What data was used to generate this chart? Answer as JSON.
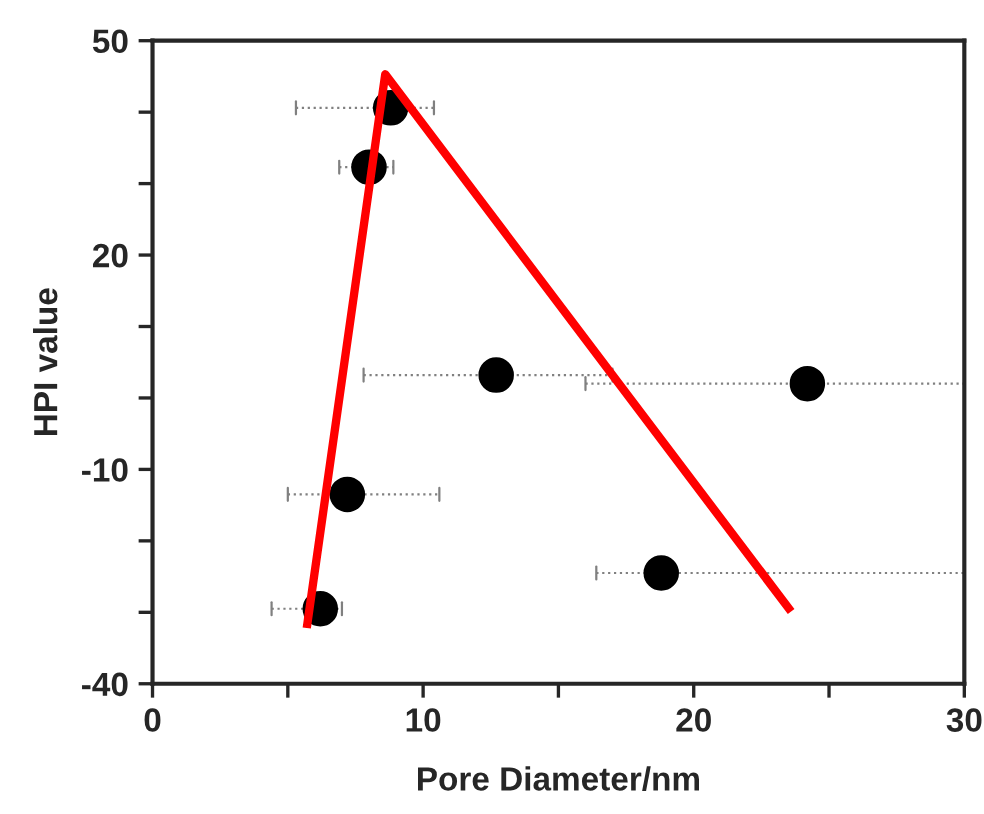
{
  "chart_data": {
    "type": "scatter",
    "xlabel": "Pore Diameter/nm",
    "ylabel": "HPI value",
    "xlim": [
      0,
      30
    ],
    "xticks": [
      0,
      {
        "value": 5,
        "label": null
      },
      10,
      {
        "value": 15,
        "label": null
      },
      20,
      {
        "value": 25,
        "label": null
      },
      30
    ],
    "ylim": [
      -40,
      50
    ],
    "yticks": [
      -40,
      {
        "value": -30,
        "label": null
      },
      {
        "value": -20,
        "label": null
      },
      -10,
      {
        "value": 0,
        "label": null
      },
      {
        "value": 10,
        "label": null
      },
      20,
      {
        "value": 30,
        "label": null
      },
      {
        "value": 40,
        "label": null
      },
      50
    ],
    "grid": false,
    "legend": false,
    "series": [
      {
        "color": "#000000",
        "marker": "circle",
        "x": [
          8.8,
          8.0,
          12.7,
          24.2,
          7.2,
          18.8,
          6.2
        ],
        "values": [
          40.6,
          32.3,
          3.2,
          2.0,
          -13.5,
          -24.5,
          -29.5
        ],
        "xerrors": [
          [
            5.3,
            10.4
          ],
          [
            6.9,
            8.9
          ],
          [
            7.8,
            17.0
          ],
          [
            16.0,
            30
          ],
          [
            5.0,
            10.6
          ],
          [
            16.4,
            30
          ],
          [
            4.4,
            7.0
          ]
        ]
      },
      {
        "type": "line",
        "color": "#ff0000",
        "marker": "none",
        "line_style": "solid",
        "x": [
          5.7,
          8.6,
          23.6
        ],
        "values": [
          -32.2,
          45.3,
          -29.9
        ]
      }
    ]
  }
}
